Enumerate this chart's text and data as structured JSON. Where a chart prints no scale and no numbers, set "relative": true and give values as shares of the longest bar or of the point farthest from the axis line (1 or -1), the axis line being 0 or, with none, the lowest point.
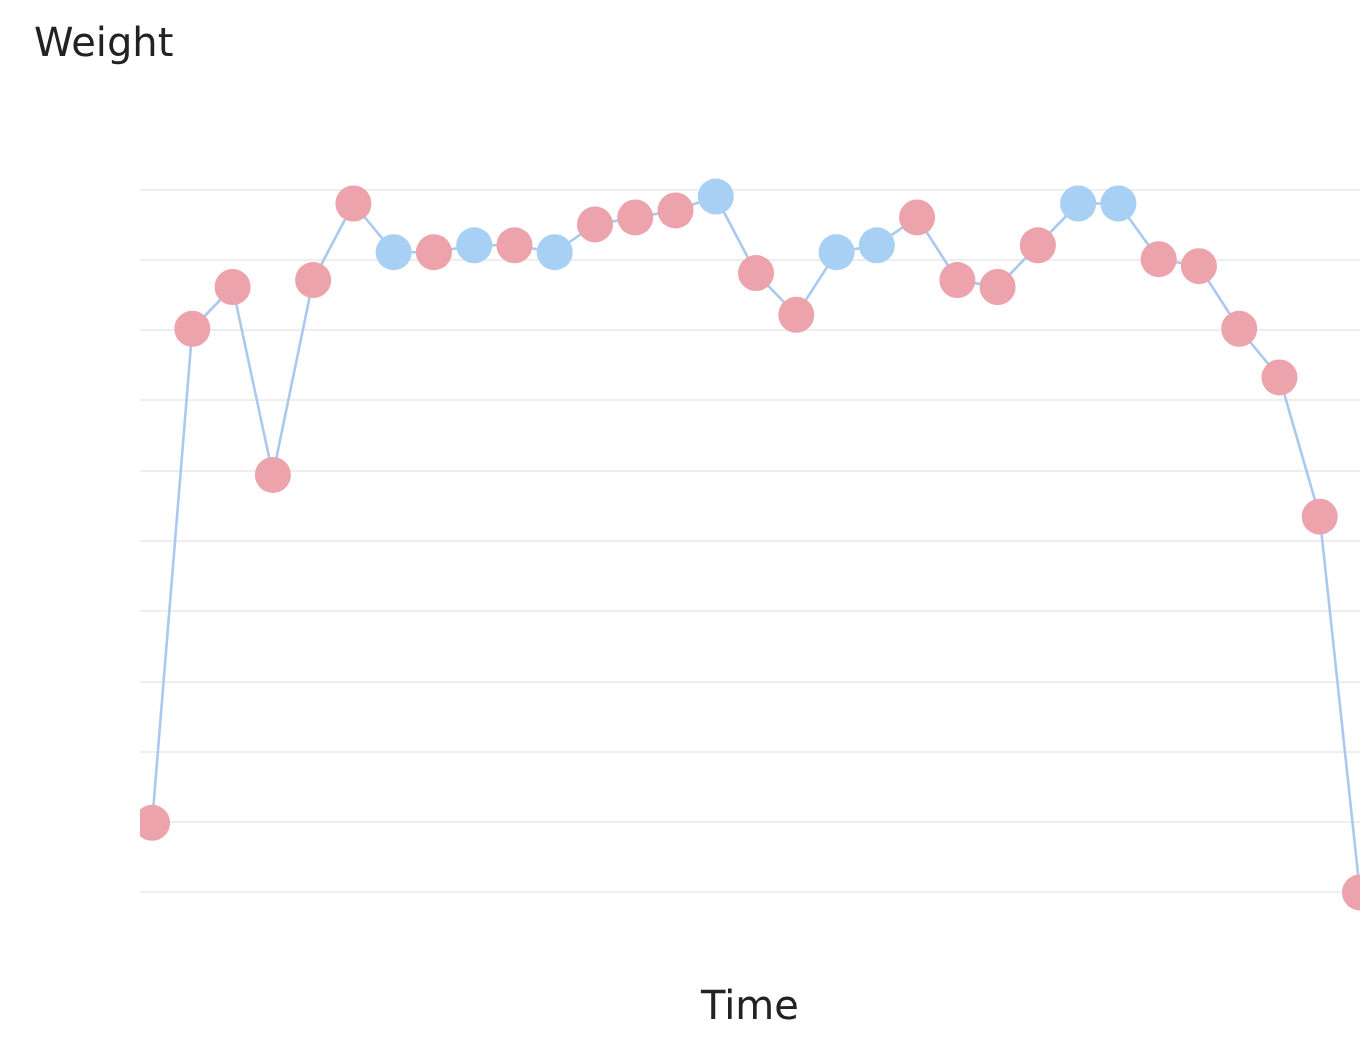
{
  "chart_data": {
    "type": "line",
    "ylabel": "Weight",
    "xlabel": "Time",
    "relative": true,
    "categories": [
      null,
      null,
      null,
      null,
      null,
      null,
      null,
      null,
      null,
      null,
      null,
      null,
      null,
      null,
      null,
      null,
      null,
      null,
      null,
      null,
      null,
      null,
      null,
      null,
      null,
      null,
      null,
      null,
      null,
      null,
      null
    ],
    "series": [
      {
        "color": "#a9c9ef",
        "values": [
          0.1,
          0.81,
          0.87,
          0.6,
          0.88,
          0.99,
          0.92,
          0.92,
          0.93,
          0.93,
          0.92,
          0.96,
          0.97,
          0.98,
          1,
          0.89,
          0.83,
          0.92,
          0.93,
          0.97,
          0.88,
          0.87,
          0.93,
          0.99,
          0.99,
          0.91,
          0.9,
          0.81,
          0.74,
          0.54,
          0
        ],
        "colors": [
          "#eda3ab",
          "#eda3ab",
          "#eda3ab",
          "#eda3ab",
          "#eda3ab",
          "#eda3ab",
          "#a8d0f5",
          "#eda3ab",
          "#a8d0f5",
          "#eda3ab",
          "#a8d0f5",
          "#eda3ab",
          "#eda3ab",
          "#eda3ab",
          "#a8d0f5",
          "#eda3ab",
          "#eda3ab",
          "#a8d0f5",
          "#a8d0f5",
          "#eda3ab",
          "#eda3ab",
          "#eda3ab",
          "#eda3ab",
          "#a8d0f5",
          "#a8d0f5",
          "#eda3ab",
          "#eda3ab",
          "#eda3ab",
          "#eda3ab",
          "#eda3ab",
          "#eda3ab"
        ]
      }
    ],
    "grid": "y",
    "marker": "circle",
    "line_style": "solid"
  }
}
